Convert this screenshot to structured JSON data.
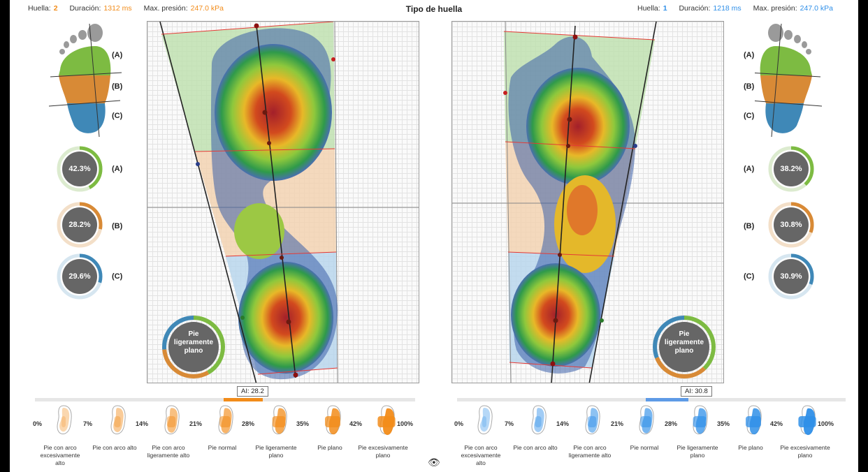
{
  "title": "Tipo de huella",
  "left_header": {
    "huella_label": "Huella:",
    "huella_value": "2",
    "duracion_label": "Duración:",
    "duracion_value": "1312 ms",
    "presion_label": "Max. presión:",
    "presion_value": "247.0 kPa"
  },
  "right_header": {
    "huella_label": "Huella:",
    "huella_value": "1",
    "duracion_label": "Duración:",
    "duracion_value": "1218 ms",
    "presion_label": "Max. presión:",
    "presion_value": "247.0 kPa"
  },
  "zones": {
    "a": "(A)",
    "b": "(B)",
    "c": "(C)"
  },
  "left_foot": {
    "percentages": [
      {
        "zone": "A",
        "label": "42.3%",
        "value": 42.3
      },
      {
        "zone": "B",
        "label": "28.2%",
        "value": 28.2
      },
      {
        "zone": "C",
        "label": "29.6%",
        "value": 29.6
      }
    ],
    "classification": "Pie ligeramente plano",
    "arch_index_label": "AI: 28.2",
    "arch_index": 28.2
  },
  "right_foot": {
    "percentages": [
      {
        "zone": "A",
        "label": "38.2%",
        "value": 38.2
      },
      {
        "zone": "B",
        "label": "30.8%",
        "value": 30.8
      },
      {
        "zone": "C",
        "label": "30.9%",
        "value": 30.9
      }
    ],
    "classification": "Pie ligeramente plano",
    "arch_index_label": "AI: 30.8",
    "arch_index": 30.8
  },
  "scale": {
    "thresholds": [
      "0%",
      "7%",
      "14%",
      "21%",
      "28%",
      "35%",
      "42%",
      "100%"
    ],
    "types": [
      "Pie con arco excesivamente alto",
      "Pie con arco alto",
      "Pie con arco ligeramente alto",
      "Pie normal",
      "Pie ligeramente plano",
      "Pie plano",
      "Pie excesivamente plano"
    ]
  },
  "colors": {
    "zone_a": "#7dbb42",
    "zone_b": "#d88a36",
    "zone_c": "#3f88b7",
    "left_accent": "#f28c1a",
    "right_accent": "#2f8fe8"
  }
}
